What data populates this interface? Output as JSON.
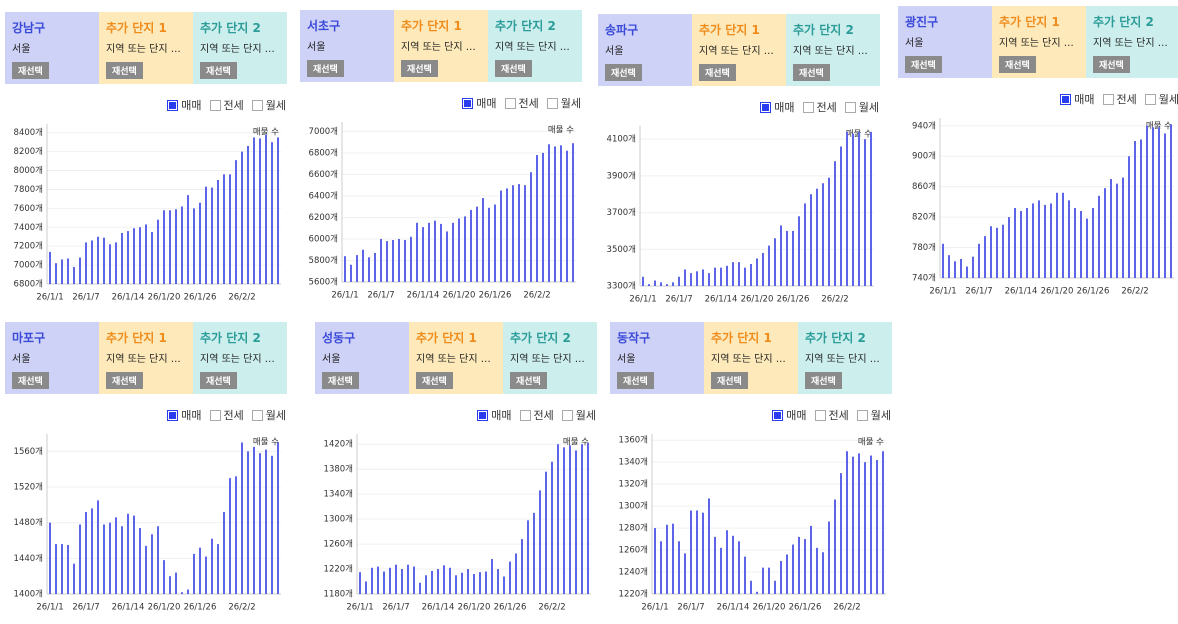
{
  "panels": [
    {
      "region": "강남구",
      "city": "서울",
      "reselect": "재선택",
      "extras": [
        {
          "title": "추가 단지 1",
          "placeholder": "지역 또는 단지 …",
          "reselect": "재선택"
        },
        {
          "title": "추가 단지 2",
          "placeholder": "지역 또는 단지 …",
          "reselect": "재선택"
        }
      ],
      "legend": [
        {
          "label": "매매",
          "checked": true
        },
        {
          "label": "전세",
          "checked": false
        },
        {
          "label": "월세",
          "checked": false
        }
      ]
    },
    {
      "region": "서초구",
      "city": "서울",
      "reselect": "재선택",
      "extras": [
        {
          "title": "추가 단지 1",
          "placeholder": "지역 또는 단지 …",
          "reselect": "재선택"
        },
        {
          "title": "추가 단지 2",
          "placeholder": "지역 또는 단지 …",
          "reselect": "재선택"
        }
      ],
      "legend": [
        {
          "label": "매매",
          "checked": true
        },
        {
          "label": "전세",
          "checked": false
        },
        {
          "label": "월세",
          "checked": false
        }
      ]
    },
    {
      "region": "송파구",
      "city": "서울",
      "reselect": "재선택",
      "extras": [
        {
          "title": "추가 단지 1",
          "placeholder": "지역 또는 단지 …",
          "reselect": "재선택"
        },
        {
          "title": "추가 단지 2",
          "placeholder": "지역 또는 단지 …",
          "reselect": "재선택"
        }
      ],
      "legend": [
        {
          "label": "매매",
          "checked": true
        },
        {
          "label": "전세",
          "checked": false
        },
        {
          "label": "월세",
          "checked": false
        }
      ]
    },
    {
      "region": "광진구",
      "city": "서울",
      "reselect": "재선택",
      "extras": [
        {
          "title": "추가 단지 1",
          "placeholder": "지역 또는 단지 …",
          "reselect": "재선택"
        },
        {
          "title": "추가 단지 2",
          "placeholder": "지역 또는 단지 …",
          "reselect": "재선택"
        }
      ],
      "legend": [
        {
          "label": "매매",
          "checked": true
        },
        {
          "label": "전세",
          "checked": false
        },
        {
          "label": "월세",
          "checked": false
        }
      ]
    },
    {
      "region": "마포구",
      "city": "서울",
      "reselect": "재선택",
      "extras": [
        {
          "title": "추가 단지 1",
          "placeholder": "지역 또는 단지 …",
          "reselect": "재선택"
        },
        {
          "title": "추가 단지 2",
          "placeholder": "지역 또는 단지 …",
          "reselect": "재선택"
        }
      ],
      "legend": [
        {
          "label": "매매",
          "checked": true
        },
        {
          "label": "전세",
          "checked": false
        },
        {
          "label": "월세",
          "checked": false
        }
      ]
    },
    {
      "region": "성동구",
      "city": "서울",
      "reselect": "재선택",
      "extras": [
        {
          "title": "추가 단지 1",
          "placeholder": "지역 또는 단지 …",
          "reselect": "재선택"
        },
        {
          "title": "추가 단지 2",
          "placeholder": "지역 또는 단지 …",
          "reselect": "재선택"
        }
      ],
      "legend": [
        {
          "label": "매매",
          "checked": true
        },
        {
          "label": "전세",
          "checked": false
        },
        {
          "label": "월세",
          "checked": false
        }
      ]
    },
    {
      "region": "동작구",
      "city": "서울",
      "reselect": "재선택",
      "extras": [
        {
          "title": "추가 단지 1",
          "placeholder": "지역 또는 단지 …",
          "reselect": "재선택"
        },
        {
          "title": "추가 단지 2",
          "placeholder": "지역 또는 단지 …",
          "reselect": "재선택"
        }
      ],
      "legend": [
        {
          "label": "매매",
          "checked": true
        },
        {
          "label": "전세",
          "checked": false
        },
        {
          "label": "월세",
          "checked": false
        }
      ]
    }
  ],
  "chart_data": [
    {
      "type": "bar",
      "categories": [
        "26/1/1",
        null,
        null,
        null,
        null,
        null,
        "26/1/7",
        null,
        null,
        null,
        null,
        null,
        null,
        "26/1/14",
        null,
        null,
        null,
        null,
        null,
        "26/1/20",
        null,
        null,
        null,
        null,
        null,
        "26/1/26",
        null,
        null,
        null,
        null,
        null,
        null,
        "26/2/2",
        null,
        null,
        null,
        null,
        null,
        null
      ],
      "series": [
        {
          "name": "매물 수",
          "color": "#5c64e8",
          "values": [
            7140,
            7020,
            7060,
            7070,
            6980,
            7080,
            7240,
            7260,
            7300,
            7290,
            7220,
            7240,
            7340,
            7360,
            7390,
            7400,
            7430,
            7350,
            7480,
            7580,
            7580,
            7590,
            7620,
            7740,
            7600,
            7660,
            7830,
            7820,
            7900,
            7960,
            7960,
            8110,
            8200,
            8260,
            8350,
            8340,
            8380,
            8300,
            8350
          ]
        }
      ],
      "ylim": [
        6800,
        8450
      ],
      "yticks": [
        {
          "value": 6800,
          "label": "6800개"
        },
        {
          "value": 7000,
          "label": "7000개"
        },
        {
          "value": 7200,
          "label": "7200개"
        },
        {
          "value": 7400,
          "label": "7400개"
        },
        {
          "value": 7600,
          "label": "7600개"
        },
        {
          "value": 7800,
          "label": "7800개"
        },
        {
          "value": 8000,
          "label": "8000개"
        },
        {
          "value": 8200,
          "label": "8200개"
        },
        {
          "value": 8400,
          "label": "8400개"
        }
      ],
      "grid": true
    },
    {
      "type": "bar",
      "categories": [
        "26/1/1",
        null,
        null,
        null,
        null,
        null,
        "26/1/7",
        null,
        null,
        null,
        null,
        null,
        null,
        "26/1/14",
        null,
        null,
        null,
        null,
        null,
        "26/1/20",
        null,
        null,
        null,
        null,
        null,
        "26/1/26",
        null,
        null,
        null,
        null,
        null,
        null,
        "26/2/2",
        null,
        null,
        null,
        null,
        null,
        null
      ],
      "series": [
        {
          "name": "매물 수",
          "color": "#5c64e8",
          "values": [
            5840,
            5760,
            5850,
            5900,
            5830,
            5870,
            6000,
            5980,
            5990,
            6000,
            5990,
            6020,
            6150,
            6110,
            6150,
            6170,
            6140,
            6070,
            6150,
            6190,
            6210,
            6270,
            6300,
            6380,
            6290,
            6320,
            6450,
            6470,
            6500,
            6510,
            6500,
            6620,
            6780,
            6800,
            6880,
            6860,
            6870,
            6820,
            6890
          ]
        }
      ],
      "ylim": [
        5600,
        7050
      ],
      "yticks": [
        {
          "value": 5600,
          "label": "5600개"
        },
        {
          "value": 5800,
          "label": "5800개"
        },
        {
          "value": 6000,
          "label": "6000개"
        },
        {
          "value": 6200,
          "label": "6200개"
        },
        {
          "value": 6400,
          "label": "6400개"
        },
        {
          "value": 6600,
          "label": "6600개"
        },
        {
          "value": 6800,
          "label": "6800개"
        },
        {
          "value": 7000,
          "label": "7000개"
        }
      ],
      "grid": true
    },
    {
      "type": "bar",
      "categories": [
        "26/1/1",
        null,
        null,
        null,
        null,
        null,
        "26/1/7",
        null,
        null,
        null,
        null,
        null,
        null,
        "26/1/14",
        null,
        null,
        null,
        null,
        null,
        "26/1/20",
        null,
        null,
        null,
        null,
        null,
        "26/1/26",
        null,
        null,
        null,
        null,
        null,
        null,
        "26/2/2",
        null,
        null,
        null,
        null,
        null,
        null
      ],
      "series": [
        {
          "name": "매물 수",
          "color": "#5c64e8",
          "values": [
            3350,
            3310,
            3330,
            3320,
            3310,
            3320,
            3350,
            3390,
            3370,
            3380,
            3390,
            3370,
            3400,
            3400,
            3410,
            3430,
            3430,
            3400,
            3420,
            3450,
            3480,
            3520,
            3560,
            3630,
            3600,
            3600,
            3680,
            3750,
            3800,
            3830,
            3860,
            3890,
            3980,
            4060,
            4140,
            4130,
            4140,
            4100,
            4140
          ]
        }
      ],
      "ylim": [
        3300,
        4150
      ],
      "yticks": [
        {
          "value": 3300,
          "label": "3300개"
        },
        {
          "value": 3500,
          "label": "3500개"
        },
        {
          "value": 3700,
          "label": "3700개"
        },
        {
          "value": 3900,
          "label": "3900개"
        },
        {
          "value": 4100,
          "label": "4100개"
        }
      ],
      "grid": true
    },
    {
      "type": "bar",
      "categories": [
        "26/1/1",
        null,
        null,
        null,
        null,
        null,
        "26/1/7",
        null,
        null,
        null,
        null,
        null,
        null,
        "26/1/14",
        null,
        null,
        null,
        null,
        null,
        "26/1/20",
        null,
        null,
        null,
        null,
        null,
        "26/1/26",
        null,
        null,
        null,
        null,
        null,
        null,
        "26/2/2",
        null,
        null,
        null,
        null,
        null,
        null
      ],
      "series": [
        {
          "name": "매물 수",
          "color": "#5c64e8",
          "values": [
            785,
            770,
            762,
            765,
            755,
            768,
            785,
            795,
            808,
            806,
            810,
            820,
            832,
            828,
            832,
            838,
            842,
            836,
            838,
            852,
            852,
            842,
            832,
            828,
            818,
            832,
            848,
            858,
            870,
            864,
            872,
            900,
            920,
            922,
            940,
            938,
            938,
            930,
            942
          ]
        }
      ],
      "ylim": [
        740,
        945
      ],
      "yticks": [
        {
          "value": 740,
          "label": "740개"
        },
        {
          "value": 780,
          "label": "780개"
        },
        {
          "value": 820,
          "label": "820개"
        },
        {
          "value": 860,
          "label": "860개"
        },
        {
          "value": 900,
          "label": "900개"
        },
        {
          "value": 940,
          "label": "940개"
        }
      ],
      "grid": true
    },
    {
      "type": "bar",
      "categories": [
        "26/1/1",
        null,
        null,
        null,
        null,
        null,
        "26/1/7",
        null,
        null,
        null,
        null,
        null,
        null,
        "26/1/14",
        null,
        null,
        null,
        null,
        null,
        "26/1/20",
        null,
        null,
        null,
        null,
        null,
        "26/1/26",
        null,
        null,
        null,
        null,
        null,
        null,
        "26/2/2",
        null,
        null,
        null,
        null,
        null,
        null
      ],
      "series": [
        {
          "name": "매물 수",
          "color": "#5c64e8",
          "values": [
            1480,
            1456,
            1456,
            1455,
            1434,
            1478,
            1492,
            1496,
            1505,
            1478,
            1480,
            1486,
            1476,
            1490,
            1488,
            1474,
            1454,
            1467,
            1476,
            1438,
            1420,
            1424,
            1402,
            1405,
            1445,
            1452,
            1442,
            1462,
            1456,
            1492,
            1530,
            1532,
            1570,
            1560,
            1565,
            1558,
            1562,
            1555,
            1570
          ]
        }
      ],
      "ylim": [
        1400,
        1575
      ],
      "yticks": [
        {
          "value": 1400,
          "label": "1400개"
        },
        {
          "value": 1440,
          "label": "1440개"
        },
        {
          "value": 1480,
          "label": "1480개"
        },
        {
          "value": 1520,
          "label": "1520개"
        },
        {
          "value": 1560,
          "label": "1560개"
        }
      ],
      "grid": true
    },
    {
      "type": "bar",
      "categories": [
        "26/1/1",
        null,
        null,
        null,
        null,
        null,
        "26/1/7",
        null,
        null,
        null,
        null,
        null,
        null,
        "26/1/14",
        null,
        null,
        null,
        null,
        null,
        "26/1/20",
        null,
        null,
        null,
        null,
        null,
        "26/1/26",
        null,
        null,
        null,
        null,
        null,
        null,
        "26/2/2",
        null,
        null,
        null,
        null,
        null,
        null
      ],
      "series": [
        {
          "name": "매물 수",
          "color": "#5c64e8",
          "values": [
            1215,
            1200,
            1222,
            1224,
            1216,
            1222,
            1227,
            1220,
            1227,
            1224,
            1198,
            1210,
            1217,
            1220,
            1226,
            1222,
            1210,
            1214,
            1220,
            1212,
            1215,
            1216,
            1236,
            1220,
            1208,
            1232,
            1245,
            1268,
            1298,
            1310,
            1346,
            1376,
            1392,
            1420,
            1415,
            1418,
            1410,
            1420,
            1422
          ]
        }
      ],
      "ylim": [
        1180,
        1430
      ],
      "yticks": [
        {
          "value": 1180,
          "label": "1180개"
        },
        {
          "value": 1220,
          "label": "1220개"
        },
        {
          "value": 1260,
          "label": "1260개"
        },
        {
          "value": 1300,
          "label": "1300개"
        },
        {
          "value": 1340,
          "label": "1340개"
        },
        {
          "value": 1380,
          "label": "1380개"
        },
        {
          "value": 1420,
          "label": "1420개"
        }
      ],
      "grid": true
    },
    {
      "type": "bar",
      "categories": [
        "26/1/1",
        null,
        null,
        null,
        null,
        null,
        "26/1/7",
        null,
        null,
        null,
        null,
        null,
        null,
        "26/1/14",
        null,
        null,
        null,
        null,
        null,
        "26/1/20",
        null,
        null,
        null,
        null,
        null,
        "26/1/26",
        null,
        null,
        null,
        null,
        null,
        null,
        "26/2/2",
        null,
        null,
        null,
        null,
        null,
        null
      ],
      "series": [
        {
          "name": "매물 수",
          "color": "#5c64e8",
          "values": [
            1280,
            1268,
            1283,
            1284,
            1268,
            1257,
            1296,
            1296,
            1294,
            1307,
            1272,
            1262,
            1278,
            1273,
            1268,
            1254,
            1232,
            1222,
            1244,
            1244,
            1232,
            1250,
            1256,
            1265,
            1272,
            1270,
            1282,
            1262,
            1258,
            1286,
            1306,
            1330,
            1350,
            1345,
            1348,
            1340,
            1346,
            1342,
            1350
          ]
        }
      ],
      "ylim": [
        1220,
        1362
      ],
      "yticks": [
        {
          "value": 1220,
          "label": "1220개"
        },
        {
          "value": 1240,
          "label": "1240개"
        },
        {
          "value": 1260,
          "label": "1260개"
        },
        {
          "value": 1280,
          "label": "1280개"
        },
        {
          "value": 1300,
          "label": "1300개"
        },
        {
          "value": 1320,
          "label": "1320개"
        },
        {
          "value": 1340,
          "label": "1340개"
        },
        {
          "value": 1360,
          "label": "1360개"
        }
      ],
      "grid": true
    }
  ]
}
